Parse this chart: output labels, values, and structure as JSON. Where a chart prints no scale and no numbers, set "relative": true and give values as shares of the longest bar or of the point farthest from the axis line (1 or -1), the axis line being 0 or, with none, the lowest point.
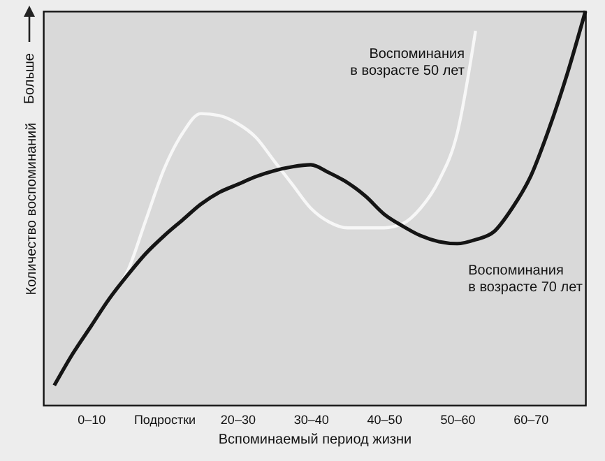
{
  "chart_data": {
    "type": "line",
    "relative": true,
    "xlabel": "Вспоминаемый период жизни",
    "ylabel": "Количество воспоминаний",
    "annotations": [
      "Больше"
    ],
    "categories": [
      null,
      null,
      "0–10",
      null,
      null,
      null,
      "Подростки",
      null,
      null,
      null,
      "20–30",
      null,
      null,
      null,
      "30–40",
      null,
      null,
      null,
      "40–50",
      null,
      null,
      null,
      "50–60",
      null,
      null,
      null,
      "60–70",
      null,
      null,
      null
    ],
    "legend": false,
    "grid": false,
    "marker": "none",
    "line_style": "solid",
    "series": [
      {
        "name": "Воспоминания в возрасте 50 лет",
        "color": "#f7f7f7",
        "values": [
          0.05,
          0.13,
          0.2,
          0.27,
          0.34,
          0.47,
          0.6,
          0.69,
          0.74,
          0.735,
          0.715,
          0.68,
          0.62,
          0.56,
          0.5,
          0.465,
          0.45,
          0.45,
          0.45,
          0.46,
          0.5,
          0.57,
          0.69,
          0.95,
          null,
          null,
          null,
          null,
          null,
          null
        ]
      },
      {
        "name": "Воспоминания в возрасте 70 лет",
        "color": "#151515",
        "values": [
          0.05,
          0.13,
          0.2,
          0.27,
          0.33,
          0.385,
          0.43,
          0.47,
          0.51,
          0.54,
          0.56,
          0.58,
          0.595,
          0.605,
          0.61,
          0.59,
          0.565,
          0.53,
          0.485,
          0.455,
          0.43,
          0.415,
          0.41,
          0.42,
          0.44,
          0.5,
          0.58,
          0.7,
          0.84,
          1.0
        ]
      }
    ]
  }
}
